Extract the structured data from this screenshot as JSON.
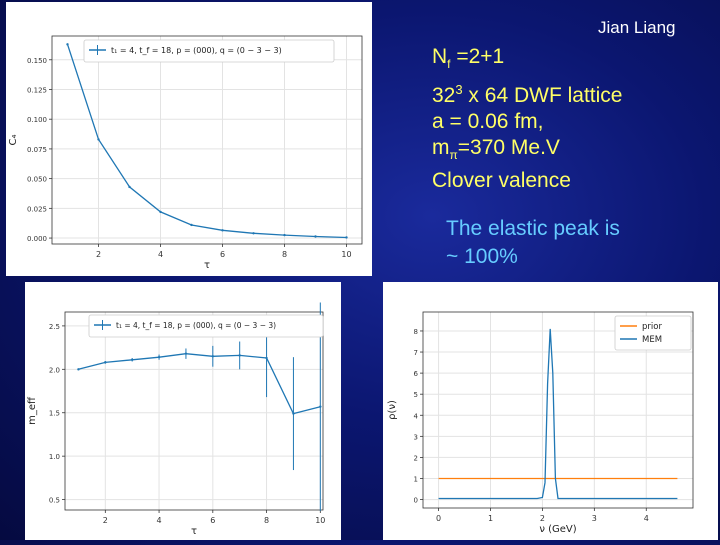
{
  "author": "Jian Liang",
  "params": {
    "nf_label": "N",
    "nf_sub": "f",
    "nf_value": " =2+1",
    "lattice_base": "32",
    "lattice_sup": "3",
    "lattice_rest": " x 64 DWF lattice",
    "spacing": "a = 0.06 fm,",
    "mass_label": "m",
    "mass_sub": "π",
    "mass_value": "=370 Me.V",
    "valence": "Clover valence"
  },
  "note": {
    "line1": "The elastic peak is",
    "line2": "~ 100%"
  },
  "chart_data": [
    {
      "type": "line",
      "ylabel": "C₄",
      "xlabel": "τ",
      "x": [
        1,
        2,
        3,
        4,
        5,
        6,
        7,
        8,
        9,
        10
      ],
      "series": [
        {
          "name": "t₁ = 4, t_f = 18, p = (000), q = (0 − 3 − 3)",
          "values": [
            0.163,
            0.083,
            0.043,
            0.022,
            0.011,
            0.0065,
            0.004,
            0.0025,
            0.0013,
            0.0005
          ],
          "color": "#1f77b4"
        }
      ],
      "xlim": [
        0.5,
        10.5
      ],
      "ylim": [
        -0.005,
        0.17
      ],
      "xticks": [
        2,
        4,
        6,
        8,
        10
      ],
      "yticks": [
        0.0,
        0.025,
        0.05,
        0.075,
        0.1,
        0.125,
        0.15
      ],
      "ytick_labels": [
        "0.000",
        "0.025",
        "0.050",
        "0.075",
        "0.100",
        "0.125",
        "0.150"
      ],
      "grid": true,
      "legend": "top-right"
    },
    {
      "type": "line",
      "ylabel": "m_eff",
      "xlabel": "τ",
      "x": [
        1,
        2,
        3,
        4,
        5,
        6,
        7,
        8,
        9,
        10
      ],
      "series": [
        {
          "name": "t₁ = 4, t_f = 18, p = (000), q = (0 − 3 − 3)",
          "values": [
            2.0,
            2.08,
            2.11,
            2.14,
            2.18,
            2.15,
            2.16,
            2.13,
            1.49,
            1.57
          ],
          "errors": [
            0.0,
            0.015,
            0.02,
            0.03,
            0.06,
            0.12,
            0.16,
            0.45,
            0.65,
            1.2
          ],
          "color": "#1f77b4"
        }
      ],
      "xlim": [
        0.5,
        10.1
      ],
      "ylim": [
        0.38,
        2.66
      ],
      "xticks": [
        2,
        4,
        6,
        8,
        10
      ],
      "yticks": [
        0.5,
        1.0,
        1.5,
        2.0,
        2.5
      ],
      "ytick_labels": [
        "0.5",
        "1.0",
        "1.5",
        "2.0",
        "2.5"
      ],
      "grid": true,
      "legend": "top-right"
    },
    {
      "type": "line",
      "ylabel": "ρ(ν)",
      "xlabel": "ν (GeV)",
      "x": [
        0,
        1,
        1.9,
        2.0,
        2.05,
        2.1,
        2.15,
        2.2,
        2.25,
        2.3,
        2.4,
        3,
        4,
        4.6
      ],
      "series": [
        {
          "name": "prior",
          "values": [
            1,
            1,
            1,
            1,
            1,
            1,
            1,
            1,
            1,
            1,
            1,
            1,
            1,
            1
          ],
          "color": "#ff7f0e"
        },
        {
          "name": "MEM",
          "values": [
            0.05,
            0.05,
            0.05,
            0.1,
            0.8,
            5.5,
            8.1,
            6.0,
            1.0,
            0.05,
            0.05,
            0.05,
            0.05,
            0.05
          ],
          "color": "#1f77b4"
        }
      ],
      "xlim": [
        -0.3,
        4.9
      ],
      "ylim": [
        -0.4,
        8.9
      ],
      "xticks": [
        0,
        1,
        2,
        3,
        4
      ],
      "yticks": [
        0,
        1,
        2,
        3,
        4,
        5,
        6,
        7,
        8
      ],
      "ytick_labels": [
        "0",
        "1",
        "2",
        "3",
        "4",
        "5",
        "6",
        "7",
        "8"
      ],
      "grid": true,
      "legend": "top-right"
    }
  ]
}
